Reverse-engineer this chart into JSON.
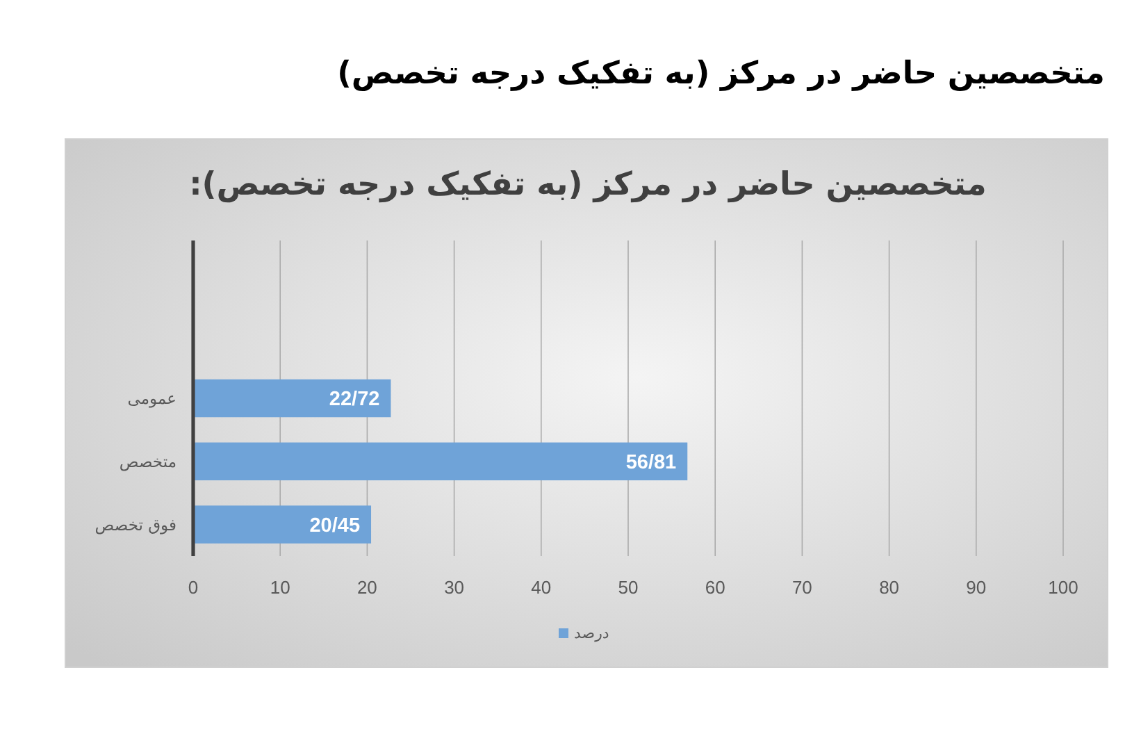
{
  "chart_data": {
    "type": "bar",
    "orientation": "horizontal",
    "title": "متخصصین حاضر در مرکز (به تفکیک درجه تخصص)",
    "subtitle": "متخصصین حاضر در مرکز (به تفکیک درجه تخصص):",
    "categories": [
      null,
      null,
      "عمومی",
      "متخصص",
      "فوق تخصص"
    ],
    "series": [
      {
        "name": "درصد",
        "color": "#6fa3d8",
        "values": [
          null,
          null,
          22.72,
          56.81,
          20.45
        ],
        "value_labels": [
          null,
          null,
          "22/72",
          "56/81",
          "20/45"
        ]
      }
    ],
    "xlim": [
      0,
      100
    ],
    "xticks": [
      0,
      10,
      20,
      30,
      40,
      50,
      60,
      70,
      80,
      90,
      100
    ],
    "grid": "x",
    "legend": "bottom"
  }
}
